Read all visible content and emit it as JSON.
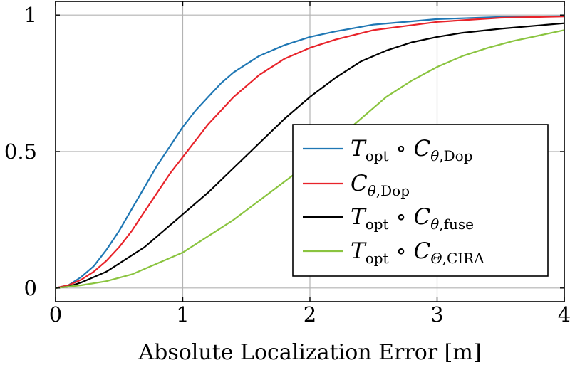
{
  "chart_data": {
    "type": "line",
    "xlabel": "Absolute Localization Error [m]",
    "ylabel": "",
    "xlim": [
      0,
      4
    ],
    "ylim": [
      -0.05,
      1.05
    ],
    "xticks": [
      "0",
      "1",
      "2",
      "3",
      "4"
    ],
    "yticks": [
      "0",
      "0.5",
      "1"
    ],
    "grid": true,
    "legend_position": "center-right",
    "series": [
      {
        "name": "T_opt ∘ C_θ,Dop",
        "color": "#1f77b4",
        "x": [
          0,
          0.1,
          0.2,
          0.3,
          0.4,
          0.5,
          0.6,
          0.7,
          0.8,
          0.9,
          1.0,
          1.1,
          1.2,
          1.3,
          1.4,
          1.5,
          1.6,
          1.8,
          2.0,
          2.2,
          2.5,
          3.0,
          3.5,
          4.0
        ],
        "y": [
          0,
          0.01,
          0.04,
          0.08,
          0.14,
          0.21,
          0.29,
          0.37,
          0.45,
          0.52,
          0.59,
          0.65,
          0.7,
          0.75,
          0.79,
          0.82,
          0.85,
          0.89,
          0.92,
          0.94,
          0.965,
          0.985,
          0.993,
          0.996
        ]
      },
      {
        "name": "C_θ,Dop",
        "color": "#e8232a",
        "x": [
          0,
          0.1,
          0.2,
          0.3,
          0.4,
          0.5,
          0.6,
          0.7,
          0.8,
          0.9,
          1.0,
          1.1,
          1.2,
          1.3,
          1.4,
          1.5,
          1.6,
          1.8,
          2.0,
          2.2,
          2.5,
          3.0,
          3.5,
          4.0
        ],
        "y": [
          0,
          0.01,
          0.03,
          0.06,
          0.1,
          0.15,
          0.21,
          0.28,
          0.35,
          0.42,
          0.48,
          0.54,
          0.6,
          0.65,
          0.7,
          0.74,
          0.78,
          0.84,
          0.88,
          0.91,
          0.945,
          0.975,
          0.99,
          0.995
        ]
      },
      {
        "name": "T_opt ∘ C_θ,fuse",
        "color": "#000000",
        "x": [
          0,
          0.1,
          0.2,
          0.3,
          0.4,
          0.5,
          0.6,
          0.7,
          0.8,
          0.9,
          1.0,
          1.2,
          1.4,
          1.6,
          1.8,
          2.0,
          2.2,
          2.4,
          2.6,
          2.8,
          3.0,
          3.2,
          3.5,
          4.0
        ],
        "y": [
          0,
          0.005,
          0.02,
          0.04,
          0.06,
          0.09,
          0.12,
          0.15,
          0.19,
          0.23,
          0.27,
          0.35,
          0.44,
          0.53,
          0.62,
          0.7,
          0.77,
          0.83,
          0.87,
          0.9,
          0.92,
          0.935,
          0.95,
          0.97
        ]
      },
      {
        "name": "T_opt ∘ C_Θ,CIRA",
        "color": "#8ac43f",
        "x": [
          0,
          0.2,
          0.4,
          0.6,
          0.8,
          1.0,
          1.2,
          1.4,
          1.6,
          1.8,
          2.0,
          2.2,
          2.4,
          2.6,
          2.8,
          3.0,
          3.2,
          3.4,
          3.6,
          3.8,
          4.0
        ],
        "y": [
          0,
          0.01,
          0.025,
          0.05,
          0.09,
          0.13,
          0.19,
          0.25,
          0.32,
          0.39,
          0.46,
          0.54,
          0.62,
          0.7,
          0.76,
          0.81,
          0.85,
          0.88,
          0.905,
          0.925,
          0.945
        ]
      }
    ],
    "legend": [
      {
        "base": "T",
        "base_sub": "opt",
        "op": " ∘ ",
        "fn": "C",
        "fn_sub_sym": "θ",
        "fn_sub": ",Dop"
      },
      {
        "base": "",
        "base_sub": "",
        "op": "",
        "fn": "C",
        "fn_sub_sym": "θ",
        "fn_sub": ",Dop"
      },
      {
        "base": "T",
        "base_sub": "opt",
        "op": " ∘ ",
        "fn": "C",
        "fn_sub_sym": "θ",
        "fn_sub": ",fuse"
      },
      {
        "base": "T",
        "base_sub": "opt",
        "op": " ∘ ",
        "fn": "C",
        "fn_sub_sym": "Θ",
        "fn_sub": ",CIRA"
      }
    ]
  }
}
